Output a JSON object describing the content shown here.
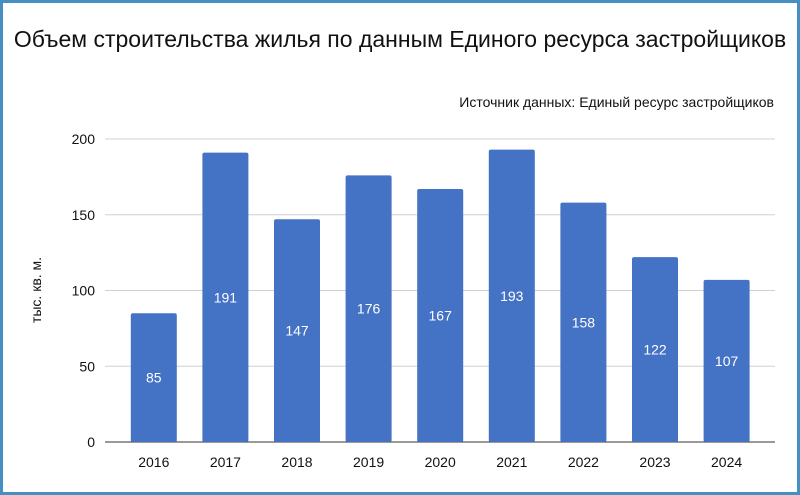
{
  "chart_data": {
    "type": "bar",
    "title": "Объем строительства жилья по данным Единого ресурса застройщиков",
    "subtitle": "Источник данных: Единый ресурс застройщиков",
    "xlabel": "",
    "ylabel": "тыс. кв. м.",
    "categories": [
      "2016",
      "2017",
      "2018",
      "2019",
      "2020",
      "2021",
      "2022",
      "2023",
      "2024"
    ],
    "values": [
      85,
      191,
      147,
      176,
      167,
      193,
      158,
      122,
      107
    ],
    "ylim": [
      0,
      200
    ],
    "yticks": [
      0,
      50,
      100,
      150,
      200
    ],
    "grid": true,
    "bar_color": "#4472c4"
  }
}
